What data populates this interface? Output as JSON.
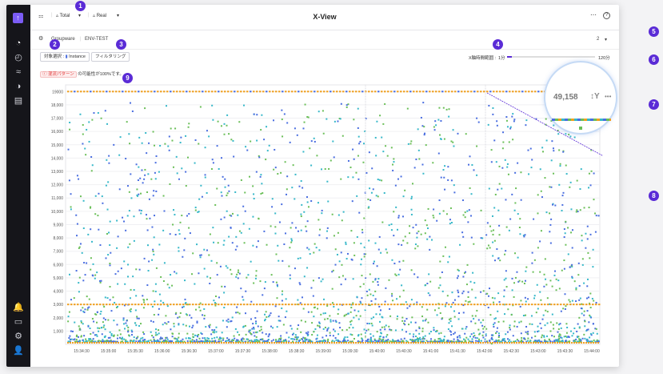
{
  "app": {
    "title": "X-View",
    "logo": "↑"
  },
  "sidebar": {
    "items": [
      {
        "name": "dashboard-icon",
        "glyph": "◔"
      },
      {
        "name": "performance-icon",
        "glyph": "◴"
      },
      {
        "name": "trend-icon",
        "glyph": "≈"
      },
      {
        "name": "analysis-icon",
        "glyph": "◑"
      },
      {
        "name": "report-icon",
        "glyph": "▤"
      },
      {
        "name": "alert-bell-icon",
        "glyph": "🔔"
      },
      {
        "name": "message-icon",
        "glyph": "▭"
      },
      {
        "name": "settings-icon",
        "glyph": "⚙"
      },
      {
        "name": "user-icon",
        "glyph": "👤"
      }
    ]
  },
  "toolbar": {
    "filter_label": "Total",
    "realtime_label": "Real",
    "more_glyph": "⋯",
    "help_glyph": "?"
  },
  "breadcrumb": {
    "group": "Groupware",
    "env": "ENV-TEST",
    "count": "2"
  },
  "controls": {
    "target_label": "対象選択 :",
    "target_value": "Instance",
    "filter_button": "フィルタリング",
    "range_label": "X軸時間範囲 :",
    "range_min": "1分",
    "range_max": "120分"
  },
  "alert": {
    "tag": "ⓘ 混流パターン",
    "text": "の可能性が100%です。"
  },
  "magnifier": {
    "count": "49,158",
    "axis_label": "Y",
    "more": "•••"
  },
  "markers": [
    "1",
    "2",
    "3",
    "4",
    "5",
    "6",
    "7",
    "8",
    "9"
  ],
  "colors": {
    "accent": "#5a2bd6",
    "blue": "#4a6ee0",
    "green": "#6bbf59",
    "teal": "#37b8c9",
    "orange": "#f0a020"
  },
  "chart_data": {
    "type": "scatter",
    "y_ticks": [
      1000,
      2000,
      3000,
      4000,
      5000,
      6000,
      7000,
      8000,
      9000,
      10000,
      11000,
      12000,
      13000,
      14000,
      15000,
      16000,
      17000,
      18000,
      19000
    ],
    "y_tick_labels": [
      "1,000",
      "2,000",
      "3,000",
      "4,000",
      "5,000",
      "6,000",
      "7,000",
      "8,000",
      "9,000",
      "10,000",
      "11,000",
      "12,000",
      "13,000",
      "14,000",
      "15,000",
      "16,000",
      "17,000",
      "18,000",
      "19000"
    ],
    "ylim": [
      0,
      19500
    ],
    "x_tick_labels": [
      "15:34:30",
      "15:35:00",
      "15:35:30",
      "15:36:00",
      "15:36:30",
      "15:37:00",
      "15:37:30",
      "15:38:00",
      "15:38:30",
      "15:39:00",
      "15:39:30",
      "15:40:00",
      "15:40:30",
      "15:41:00",
      "15:41:30",
      "15:42:00",
      "15:42:30",
      "15:43:00",
      "15:43:30",
      "15:44:00"
    ],
    "series": [
      {
        "color": "#4a6ee0"
      },
      {
        "color": "#6bbf59"
      },
      {
        "color": "#37b8c9"
      },
      {
        "color": "#f0a020"
      }
    ],
    "threshold_lines": [
      19000,
      3000
    ]
  }
}
